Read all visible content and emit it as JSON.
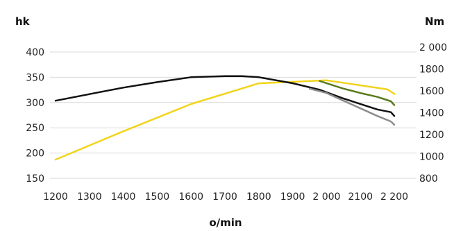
{
  "chart_data": {
    "type": "line",
    "left_axis_unit": "hk",
    "right_axis_unit": "Nm",
    "xlabel": "o/min",
    "x_ticks": [
      "1200",
      "1300",
      "1400",
      "1500",
      "1600",
      "1700",
      "1800",
      "1900",
      "2 000",
      "2100",
      "2 200"
    ],
    "y_left_ticks": [
      "400",
      "350",
      "300",
      "250",
      "200",
      "150"
    ],
    "y_right_ticks": [
      "2 000",
      "1800",
      "1600",
      "1400",
      "1200",
      "1000",
      "800"
    ],
    "xlim": [
      1200,
      2200
    ],
    "ylim_left": [
      150,
      400
    ],
    "ylim_right": [
      800,
      2000
    ],
    "grid": "horizontal",
    "series": [
      {
        "color": "#f2d41c",
        "axis": "left",
        "x": [
          1200,
          1400,
          1600,
          1800,
          2000,
          2100,
          2180,
          2200
        ],
        "y": [
          187,
          243,
          297,
          338,
          344,
          334,
          326,
          317
        ]
      },
      {
        "color": "#111111",
        "axis": "right",
        "x": [
          1200,
          1300,
          1400,
          1500,
          1600,
          1700,
          1750,
          1800,
          1900,
          1980,
          2050,
          2100,
          2150,
          2190,
          2200
        ],
        "y": [
          1510,
          1570,
          1630,
          1680,
          1725,
          1735,
          1735,
          1725,
          1670,
          1610,
          1530,
          1480,
          1430,
          1405,
          1370
        ]
      },
      {
        "color": "#5a7a1e",
        "axis": "right",
        "x": [
          1980,
          2050,
          2100,
          2150,
          2190,
          2200
        ],
        "y": [
          1690,
          1620,
          1580,
          1545,
          1505,
          1470
        ]
      },
      {
        "color": "#8c8c8c",
        "axis": "right",
        "x": [
          1950,
          2000,
          2050,
          2100,
          2150,
          2190,
          2200
        ],
        "y": [
          1620,
          1580,
          1510,
          1440,
          1370,
          1320,
          1290
        ]
      }
    ]
  }
}
